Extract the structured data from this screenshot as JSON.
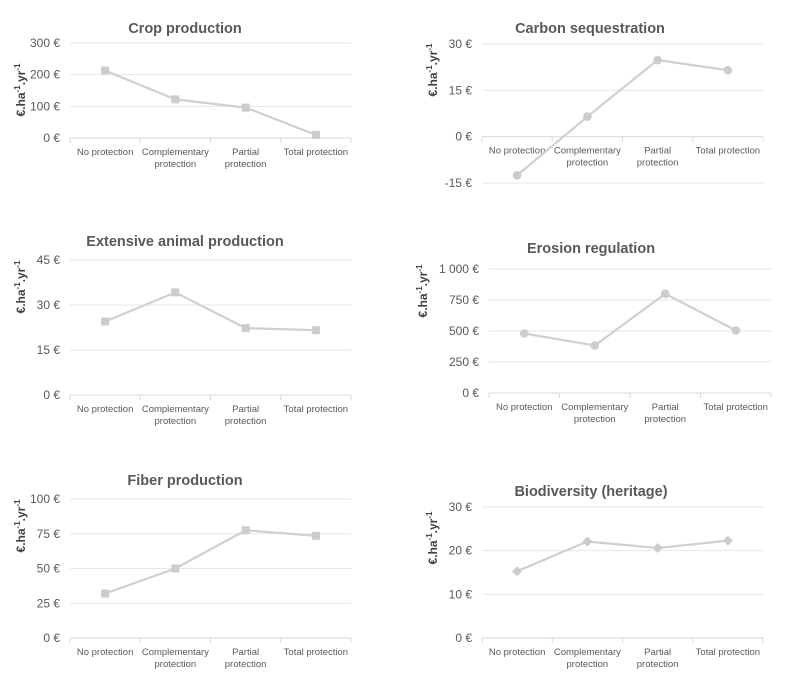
{
  "chart_data": [
    {
      "type": "line",
      "title": "Crop production",
      "ylabel": "€.ha⁻¹.yr⁻¹",
      "categories": [
        "No protection",
        "Complementary protection",
        "Partial protection",
        "Total protection"
      ],
      "values": [
        213,
        122,
        96,
        10
      ],
      "ylim": [
        0,
        300
      ],
      "yticks": [
        0,
        100,
        200,
        300
      ],
      "ytick_labels": [
        "0 €",
        "100 €",
        "200 €",
        "300 €"
      ],
      "marker": "square",
      "grid": true,
      "color": "#d0d0d0"
    },
    {
      "type": "line",
      "title": "Carbon sequestration",
      "ylabel": "€.ha⁻¹.yr⁻¹",
      "categories": [
        "No protection",
        "Complementary protection",
        "Partial protection",
        "Total protection"
      ],
      "values": [
        -12.5,
        6.5,
        24.8,
        21.5
      ],
      "ylim": [
        -15,
        30
      ],
      "yticks": [
        -15,
        0,
        15,
        30
      ],
      "ytick_labels": [
        "-15 €",
        "0 €",
        "15 €",
        "30 €"
      ],
      "marker": "circle",
      "grid": true,
      "color": "#d0d0d0"
    },
    {
      "type": "line",
      "title": "Extensive animal production",
      "ylabel": "€.ha⁻¹.yr⁻¹",
      "categories": [
        "No protection",
        "Complementary protection",
        "Partial protection",
        "Total protection"
      ],
      "values": [
        24.5,
        34.2,
        22.3,
        21.6
      ],
      "ylim": [
        0,
        45
      ],
      "yticks": [
        0,
        15,
        30,
        45
      ],
      "ytick_labels": [
        "0 €",
        "15 €",
        "30 €",
        "45 €"
      ],
      "marker": "square",
      "grid": true,
      "color": "#d0d0d0"
    },
    {
      "type": "line",
      "title": "Erosion regulation",
      "ylabel": "€.ha⁻¹.yr⁻¹",
      "categories": [
        "No protection",
        "Complementary protection",
        "Partial protection",
        "Total protection"
      ],
      "values": [
        480,
        383,
        800,
        505
      ],
      "ylim": [
        0,
        1000
      ],
      "yticks": [
        0,
        250,
        500,
        750,
        1000
      ],
      "ytick_labels": [
        "0 €",
        "250 €",
        "500 €",
        "750 €",
        "1 000 €"
      ],
      "marker": "circle",
      "grid": true,
      "color": "#d0d0d0"
    },
    {
      "type": "line",
      "title": "Fiber production",
      "ylabel": "€.ha⁻¹.yr⁻¹",
      "categories": [
        "No protection",
        "Complementary protection",
        "Partial protection",
        "Total protection"
      ],
      "values": [
        32,
        50,
        77.5,
        73.5
      ],
      "ylim": [
        0,
        100
      ],
      "yticks": [
        0,
        25,
        50,
        75,
        100
      ],
      "ytick_labels": [
        "0 €",
        "25 €",
        "50 €",
        "75 €",
        "100 €"
      ],
      "marker": "square",
      "grid": true,
      "color": "#d0d0d0"
    },
    {
      "type": "line",
      "title": "Biodiversity (heritage)",
      "ylabel": "€.ha⁻¹.yr⁻¹",
      "categories": [
        "No protection",
        "Complementary protection",
        "Partial protection",
        "Total protection"
      ],
      "values": [
        15.3,
        22.1,
        20.6,
        22.3
      ],
      "ylim": [
        0,
        30
      ],
      "yticks": [
        0,
        10,
        20,
        30
      ],
      "ytick_labels": [
        "0 €",
        "10 €",
        "20 €",
        "30 €"
      ],
      "marker": "diamond",
      "grid": true,
      "color": "#d0d0d0"
    }
  ]
}
